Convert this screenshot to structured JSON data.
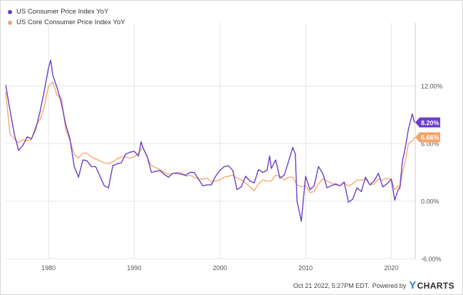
{
  "legend": {
    "series1": "US Consumer Price Index YoY",
    "series2": "US Core Consumer Price Index YoY"
  },
  "footer": {
    "timestamp": "Oct 21 2022, 5:27PM EDT.",
    "powered_by": "Powered by",
    "brand_icon": "Y",
    "brand": "CHARTS"
  },
  "colors": {
    "cpi": "#6a3fc8",
    "core": "#f5a46a",
    "grid": "#e4e4e4",
    "axis": "#555555"
  },
  "chart_data": {
    "type": "line",
    "title": "",
    "xlabel": "",
    "ylabel": "",
    "xlim": [
      1975,
      2022.8
    ],
    "ylim": [
      -6,
      18
    ],
    "grid": true,
    "legend_position": "top-left",
    "x_ticks": [
      1980,
      1990,
      2000,
      2010,
      2020
    ],
    "x_tick_labels": [
      "1980",
      "1990",
      "2000",
      "2010",
      "2020"
    ],
    "y_ticks": [
      -6,
      0,
      6,
      12
    ],
    "y_tick_labels": [
      "-6.00%",
      "0.00%",
      "6.00%",
      "12.00%"
    ],
    "series": [
      {
        "name": "US Consumer Price Index YoY",
        "color": "#6a3fc8",
        "last_value_label": "8.20%",
        "x": [
          1975.0,
          1975.5,
          1976.0,
          1976.5,
          1977.0,
          1977.5,
          1978.0,
          1978.5,
          1979.0,
          1979.5,
          1980.0,
          1980.25,
          1980.5,
          1981.0,
          1981.5,
          1982.0,
          1982.5,
          1983.0,
          1983.5,
          1984.0,
          1984.5,
          1985.0,
          1985.5,
          1986.0,
          1986.5,
          1987.0,
          1987.5,
          1988.0,
          1988.5,
          1989.0,
          1989.5,
          1990.0,
          1990.5,
          1990.8,
          1991.0,
          1991.5,
          1992.0,
          1992.5,
          1993.0,
          1993.5,
          1994.0,
          1994.5,
          1995.0,
          1995.5,
          1996.0,
          1996.5,
          1997.0,
          1997.5,
          1998.0,
          1998.5,
          1999.0,
          1999.5,
          2000.0,
          2000.5,
          2001.0,
          2001.5,
          2002.0,
          2002.5,
          2003.0,
          2003.5,
          2004.0,
          2004.5,
          2005.0,
          2005.5,
          2005.8,
          2006.0,
          2006.5,
          2007.0,
          2007.5,
          2008.0,
          2008.5,
          2008.8,
          2009.0,
          2009.25,
          2009.5,
          2010.0,
          2010.5,
          2011.0,
          2011.5,
          2012.0,
          2012.5,
          2013.0,
          2013.5,
          2014.0,
          2014.5,
          2015.0,
          2015.5,
          2016.0,
          2016.5,
          2017.0,
          2017.5,
          2018.0,
          2018.5,
          2019.0,
          2019.5,
          2020.0,
          2020.4,
          2020.8,
          2021.0,
          2021.3,
          2021.6,
          2022.0,
          2022.45,
          2022.7
        ],
        "y": [
          12.1,
          9.5,
          7.0,
          5.3,
          5.8,
          6.7,
          6.5,
          7.5,
          9.3,
          11.5,
          13.9,
          14.7,
          13.1,
          11.8,
          10.2,
          8.0,
          6.5,
          3.6,
          2.5,
          4.3,
          4.2,
          3.6,
          3.6,
          2.6,
          1.6,
          1.4,
          3.7,
          3.9,
          4.0,
          4.9,
          5.1,
          5.2,
          4.7,
          6.2,
          5.6,
          4.7,
          3.0,
          3.1,
          3.2,
          2.8,
          2.5,
          2.9,
          2.9,
          2.8,
          2.7,
          3.0,
          3.0,
          2.3,
          1.6,
          1.7,
          1.7,
          2.6,
          3.2,
          3.6,
          3.7,
          3.2,
          1.2,
          1.5,
          2.6,
          2.1,
          1.9,
          3.3,
          3.0,
          3.2,
          4.7,
          3.4,
          4.3,
          2.4,
          2.7,
          4.1,
          5.6,
          4.9,
          0.0,
          -1.0,
          -2.1,
          2.6,
          1.2,
          1.6,
          3.6,
          2.9,
          1.4,
          1.6,
          1.8,
          1.6,
          2.0,
          -0.1,
          0.2,
          1.4,
          1.0,
          2.5,
          1.7,
          2.1,
          2.9,
          1.5,
          1.8,
          2.3,
          0.1,
          1.2,
          1.4,
          4.2,
          5.4,
          7.5,
          9.1,
          8.2
        ]
      },
      {
        "name": "US Core Consumer Price Index YoY",
        "color": "#f5a46a",
        "last_value_label": "6.66%",
        "x": [
          1975.0,
          1975.5,
          1976.0,
          1976.5,
          1977.0,
          1977.5,
          1978.0,
          1978.5,
          1979.0,
          1979.5,
          1980.0,
          1980.5,
          1981.0,
          1981.5,
          1982.0,
          1982.5,
          1983.0,
          1983.5,
          1984.0,
          1984.5,
          1985.0,
          1985.5,
          1986.0,
          1986.5,
          1987.0,
          1987.5,
          1988.0,
          1988.5,
          1989.0,
          1989.5,
          1990.0,
          1990.5,
          1991.0,
          1991.5,
          1992.0,
          1992.5,
          1993.0,
          1993.5,
          1994.0,
          1994.5,
          1995.0,
          1995.5,
          1996.0,
          1996.5,
          1997.0,
          1997.5,
          1998.0,
          1998.5,
          1999.0,
          1999.5,
          2000.0,
          2000.5,
          2001.0,
          2001.5,
          2002.0,
          2002.5,
          2003.0,
          2003.5,
          2004.0,
          2004.5,
          2005.0,
          2005.5,
          2006.0,
          2006.5,
          2007.0,
          2007.5,
          2008.0,
          2008.5,
          2009.0,
          2009.5,
          2010.0,
          2010.5,
          2011.0,
          2011.5,
          2012.0,
          2012.5,
          2013.0,
          2013.5,
          2014.0,
          2014.5,
          2015.0,
          2015.5,
          2016.0,
          2016.5,
          2017.0,
          2017.5,
          2018.0,
          2018.5,
          2019.0,
          2019.5,
          2020.0,
          2020.4,
          2020.8,
          2021.0,
          2021.3,
          2021.6,
          2022.0,
          2022.5,
          2022.7
        ],
        "y": [
          11.4,
          7.0,
          6.5,
          6.1,
          6.4,
          6.3,
          6.4,
          7.8,
          8.5,
          9.8,
          12.0,
          12.4,
          11.0,
          10.8,
          7.5,
          6.3,
          4.9,
          4.5,
          5.0,
          5.0,
          4.6,
          4.4,
          4.2,
          4.0,
          3.9,
          4.1,
          4.4,
          4.6,
          4.6,
          4.5,
          4.6,
          5.0,
          5.6,
          4.6,
          3.7,
          3.5,
          3.3,
          3.0,
          2.8,
          2.9,
          3.0,
          3.0,
          2.6,
          2.7,
          2.5,
          2.3,
          2.3,
          2.4,
          2.0,
          2.1,
          2.2,
          2.5,
          2.6,
          2.7,
          2.4,
          2.2,
          1.9,
          1.5,
          1.1,
          1.8,
          2.2,
          2.1,
          2.1,
          2.7,
          2.6,
          2.2,
          2.5,
          2.5,
          1.7,
          1.5,
          1.6,
          0.9,
          1.0,
          1.8,
          2.3,
          2.1,
          1.9,
          1.7,
          1.6,
          1.9,
          1.6,
          1.8,
          2.2,
          2.2,
          2.3,
          1.7,
          1.8,
          2.3,
          2.2,
          2.4,
          2.3,
          1.2,
          1.6,
          1.3,
          3.0,
          4.0,
          6.0,
          6.3,
          6.66
        ]
      }
    ]
  }
}
